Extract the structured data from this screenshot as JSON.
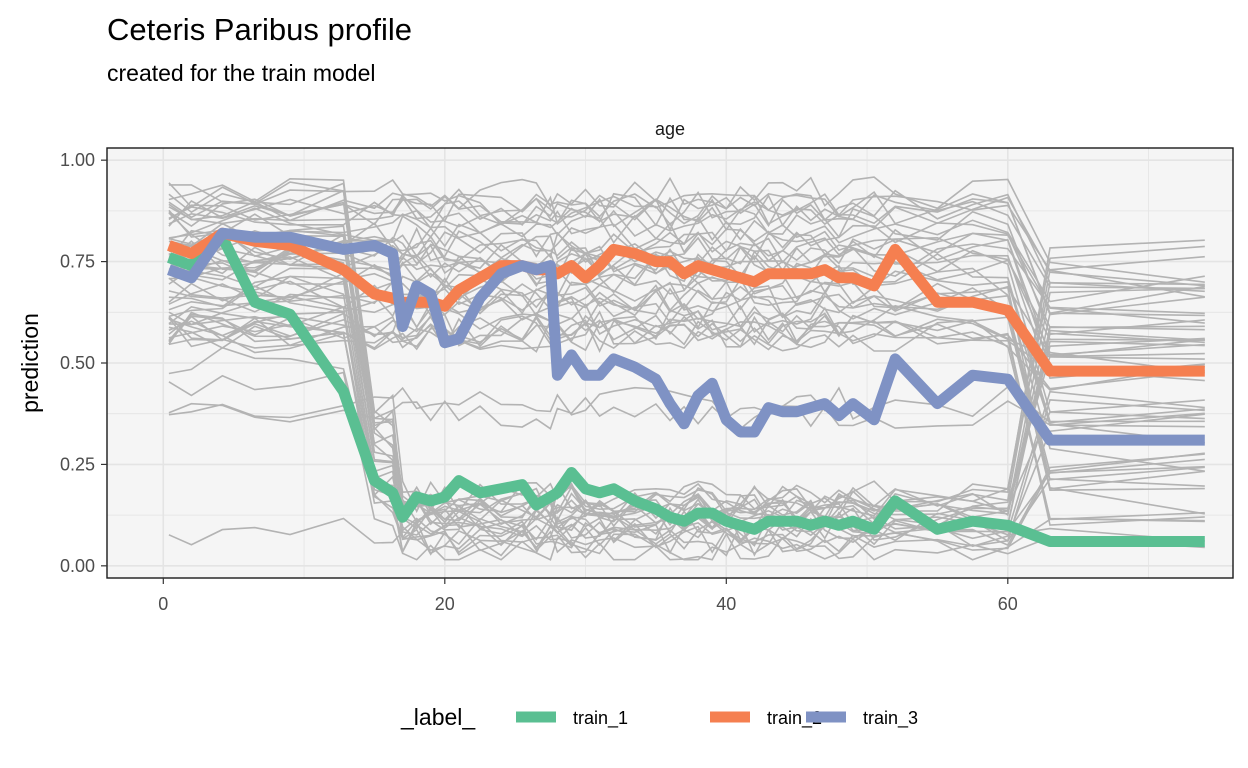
{
  "chart_data": {
    "type": "line",
    "title": "Ceteris Paribus profile",
    "subtitle": "created for the train model",
    "facet_label": "age",
    "xlabel": "",
    "ylabel": "prediction",
    "xlim": [
      -4,
      76
    ],
    "ylim": [
      -0.03,
      1.03
    ],
    "x_ticks": [
      0,
      20,
      40,
      60
    ],
    "x_tick_labels": [
      "0",
      "20",
      "40",
      "60"
    ],
    "y_ticks": [
      0,
      0.25,
      0.5,
      0.75,
      1.0
    ],
    "y_tick_labels": [
      "0.00",
      "0.25",
      "0.50",
      "0.75",
      "1.00"
    ],
    "grid": true,
    "legend_position": "bottom",
    "legend_title": "_label_",
    "colors": {
      "background_lines": "#b3b3b3",
      "panel": "#f5f5f5",
      "grid": "#e4e4e4",
      "train_1": "#5abf92",
      "train_2": "#f57f50",
      "train_3": "#7f92c4"
    },
    "x": [
      0.4,
      2,
      4.2,
      6.5,
      9,
      12.8,
      15,
      16.3,
      17,
      18,
      19,
      20,
      21,
      22.5,
      24,
      25.5,
      26.5,
      27.5,
      28,
      29,
      30,
      31,
      32,
      33.5,
      35,
      36,
      37,
      38,
      39,
      40,
      41,
      42,
      43,
      44,
      45,
      46,
      47,
      48,
      49,
      50.5,
      52,
      55,
      57.5,
      60,
      63,
      74
    ],
    "series": [
      {
        "name": "train_1",
        "values": [
          0.76,
          0.74,
          0.81,
          0.65,
          0.62,
          0.43,
          0.21,
          0.18,
          0.12,
          0.17,
          0.16,
          0.17,
          0.21,
          0.18,
          0.19,
          0.2,
          0.15,
          0.17,
          0.18,
          0.23,
          0.19,
          0.18,
          0.19,
          0.16,
          0.14,
          0.12,
          0.11,
          0.13,
          0.13,
          0.11,
          0.1,
          0.09,
          0.11,
          0.11,
          0.11,
          0.1,
          0.11,
          0.1,
          0.11,
          0.09,
          0.16,
          0.09,
          0.11,
          0.1,
          0.06,
          0.06
        ]
      },
      {
        "name": "train_2",
        "values": [
          0.79,
          0.77,
          0.82,
          0.8,
          0.79,
          0.73,
          0.67,
          0.66,
          0.65,
          0.65,
          0.65,
          0.64,
          0.68,
          0.71,
          0.74,
          0.74,
          0.73,
          0.73,
          0.72,
          0.74,
          0.71,
          0.74,
          0.78,
          0.77,
          0.75,
          0.75,
          0.72,
          0.74,
          0.73,
          0.72,
          0.71,
          0.7,
          0.72,
          0.72,
          0.72,
          0.72,
          0.73,
          0.71,
          0.71,
          0.69,
          0.78,
          0.65,
          0.65,
          0.63,
          0.48,
          0.48
        ]
      },
      {
        "name": "train_3",
        "values": [
          0.73,
          0.71,
          0.82,
          0.81,
          0.81,
          0.78,
          0.79,
          0.77,
          0.59,
          0.69,
          0.67,
          0.55,
          0.56,
          0.66,
          0.72,
          0.74,
          0.73,
          0.74,
          0.47,
          0.52,
          0.47,
          0.47,
          0.51,
          0.49,
          0.46,
          0.4,
          0.35,
          0.42,
          0.45,
          0.36,
          0.33,
          0.33,
          0.39,
          0.38,
          0.38,
          0.39,
          0.4,
          0.37,
          0.4,
          0.36,
          0.51,
          0.4,
          0.47,
          0.46,
          0.31,
          0.31
        ]
      }
    ]
  }
}
